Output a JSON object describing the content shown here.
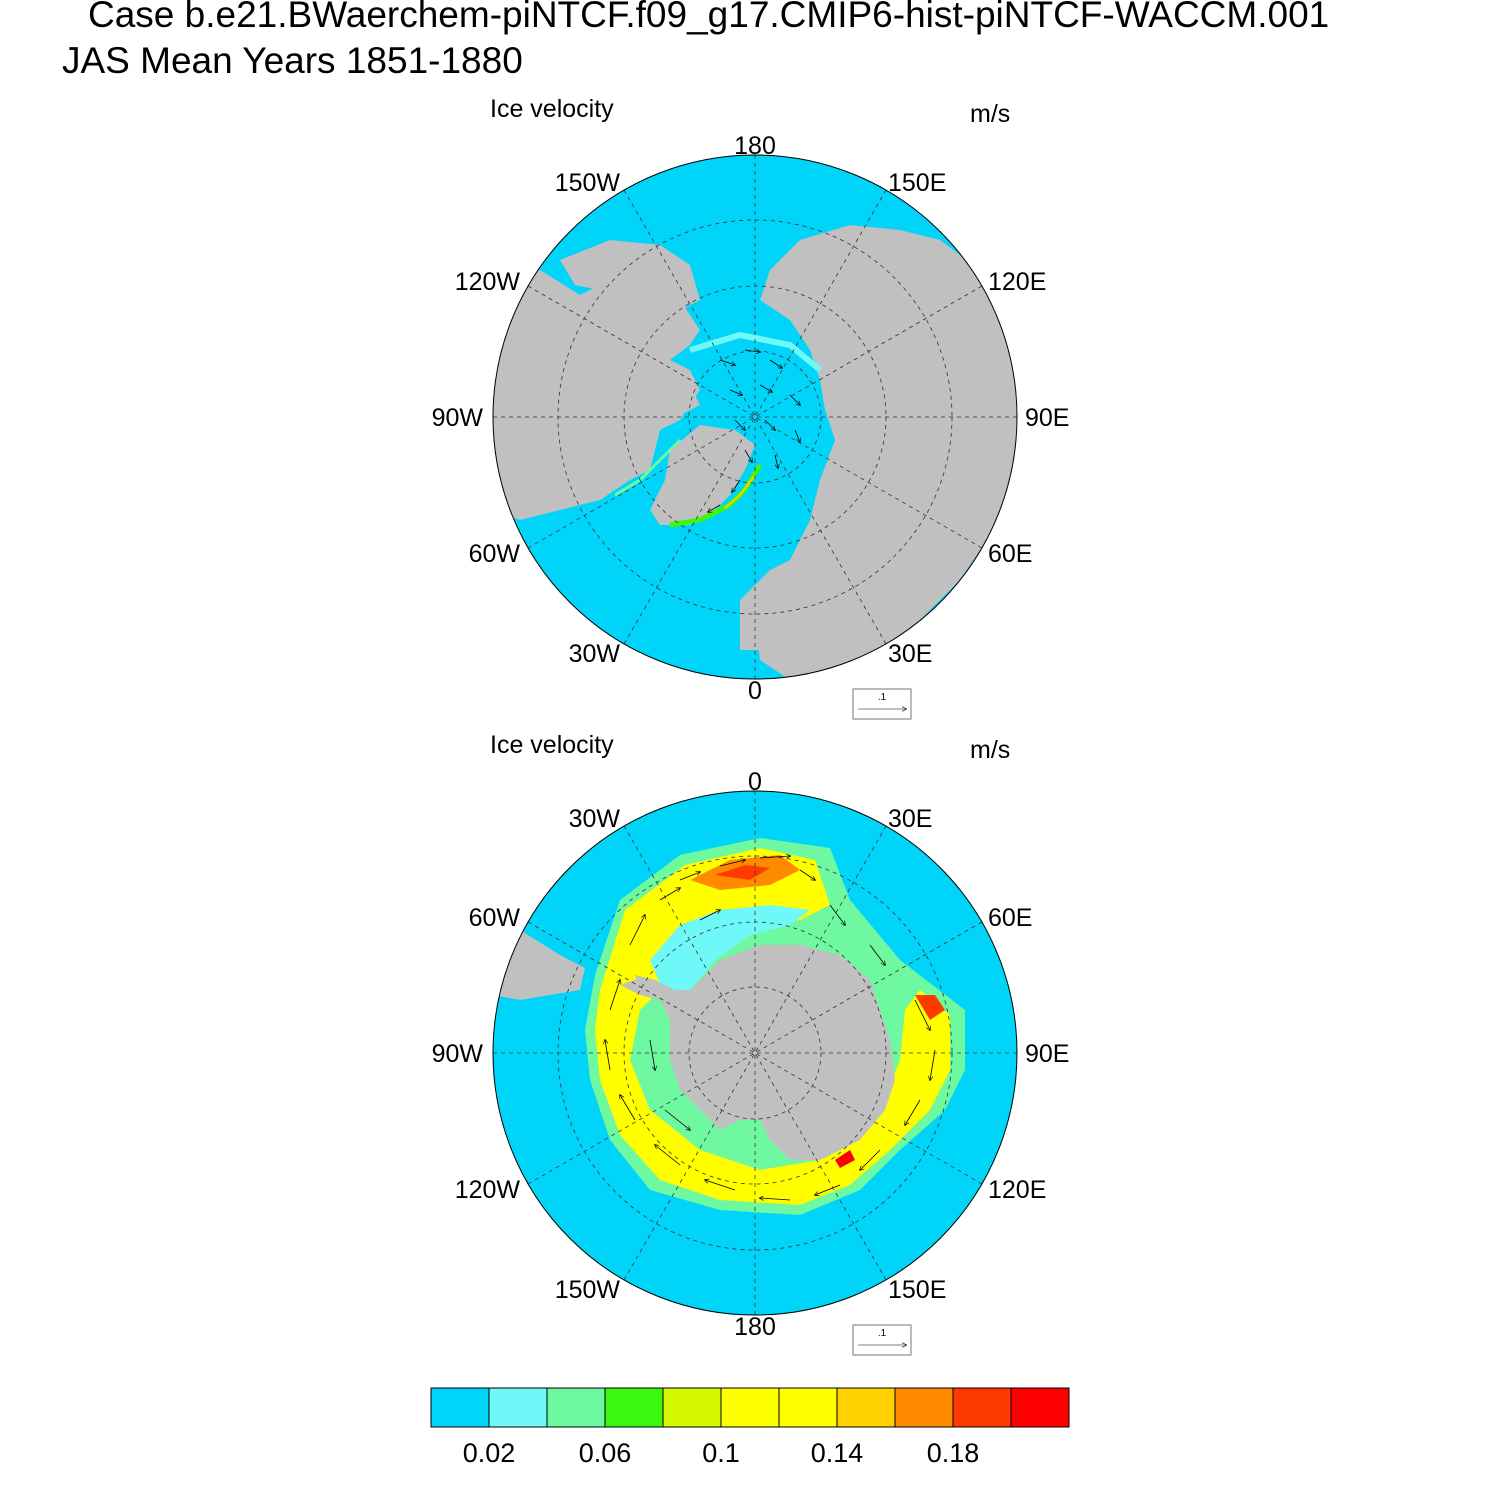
{
  "header": {
    "case_title": "Case b.e21.BWaerchem-piNTCF.f09_g17.CMIP6-hist-piNTCF-WACCM.001",
    "period": "JAS Mean   Years 1851-1880"
  },
  "panels": [
    {
      "hemisphere": "north",
      "title": "Ice velocity",
      "units": "m/s",
      "lon_labels": [
        "180",
        "150E",
        "120E",
        "90E",
        "60E",
        "30E",
        "0",
        "30W",
        "60W",
        "90W",
        "120W",
        "150W"
      ],
      "ref_vector_label": ".1"
    },
    {
      "hemisphere": "south",
      "title": "Ice velocity",
      "units": "m/s",
      "lon_labels": [
        "0",
        "30E",
        "60E",
        "90E",
        "120E",
        "150E",
        "180",
        "150W",
        "120W",
        "90W",
        "60W",
        "30W"
      ],
      "ref_vector_label": ".1"
    }
  ],
  "colorbar": {
    "colors": [
      "#00d4f8",
      "#6ff8f8",
      "#6ef8a0",
      "#3af80e",
      "#d4f800",
      "#ffff00",
      "#ffff00",
      "#ffd000",
      "#ff8a00",
      "#ff3a00",
      "#ff0000"
    ],
    "tick_labels": [
      "0.02",
      "0.06",
      "0.1",
      "0.14",
      "0.18"
    ]
  },
  "colors": {
    "ocean": "#00d4f8",
    "land": "#c0c0c0"
  }
}
